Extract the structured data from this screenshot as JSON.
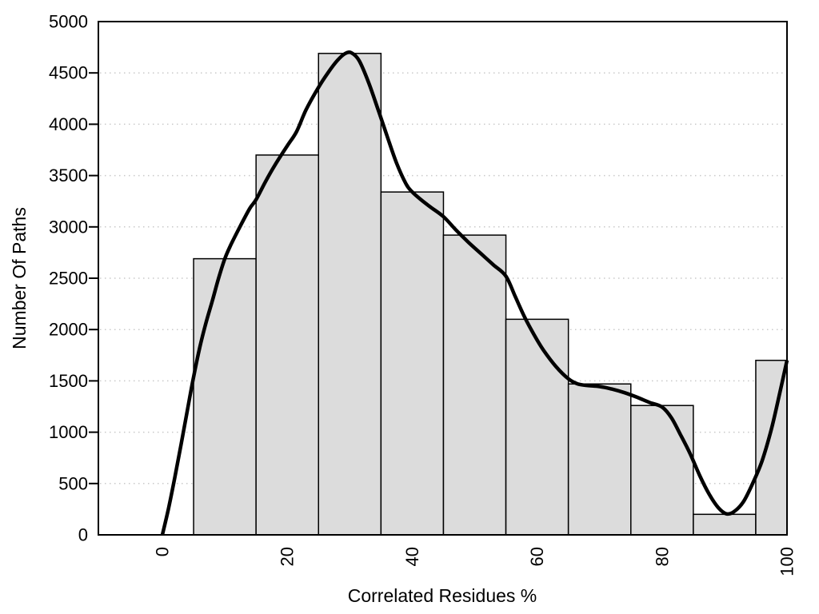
{
  "chart_data": {
    "type": "bar",
    "subtype": "histogram-with-density-curve",
    "title": "",
    "xlabel": "Correlated Residues %",
    "ylabel": "Number Of Paths",
    "xlim": [
      -10.25,
      100
    ],
    "ylim": [
      0,
      5000
    ],
    "x_ticks": [
      0,
      20,
      40,
      60,
      80,
      100
    ],
    "y_ticks": [
      0,
      500,
      1000,
      1500,
      2000,
      2500,
      3000,
      3500,
      4000,
      4500,
      5000
    ],
    "gridline_values": [
      500,
      1000,
      1500,
      2000,
      2500,
      3000,
      3500,
      4000,
      4500
    ],
    "grid_style": "dotted-horizontal-only",
    "legend": "none",
    "bars": {
      "bin_start": 5,
      "bin_width": 10,
      "bin_edges": [
        5,
        15,
        25,
        35,
        45,
        55,
        65,
        75,
        85,
        95,
        100
      ],
      "values": [
        2690,
        3700,
        4690,
        3340,
        2920,
        2100,
        1470,
        1260,
        200,
        1700
      ],
      "note": "last bin clipped at x=100 (right frame)"
    },
    "curve_points": [
      [
        0,
        0
      ],
      [
        1,
        260
      ],
      [
        2,
        560
      ],
      [
        3,
        880
      ],
      [
        4,
        1210
      ],
      [
        5,
        1540
      ],
      [
        6,
        1830
      ],
      [
        7,
        2070
      ],
      [
        8,
        2280
      ],
      [
        9,
        2500
      ],
      [
        10,
        2690
      ],
      [
        11,
        2830
      ],
      [
        12.5,
        3010
      ],
      [
        14,
        3180
      ],
      [
        15,
        3265
      ],
      [
        16.5,
        3440
      ],
      [
        18,
        3600
      ],
      [
        20,
        3790
      ],
      [
        21.5,
        3930
      ],
      [
        23,
        4140
      ],
      [
        25,
        4360
      ],
      [
        26.5,
        4500
      ],
      [
        28,
        4620
      ],
      [
        29.3,
        4690
      ],
      [
        30.3,
        4695
      ],
      [
        31.5,
        4620
      ],
      [
        33,
        4410
      ],
      [
        34.5,
        4150
      ],
      [
        36,
        3880
      ],
      [
        37.5,
        3620
      ],
      [
        39,
        3420
      ],
      [
        40,
        3340
      ],
      [
        41.5,
        3260
      ],
      [
        43,
        3190
      ],
      [
        45,
        3100
      ],
      [
        47,
        2970
      ],
      [
        49,
        2850
      ],
      [
        51,
        2740
      ],
      [
        53,
        2630
      ],
      [
        55,
        2520
      ],
      [
        56.5,
        2320
      ],
      [
        58,
        2120
      ],
      [
        59.5,
        1950
      ],
      [
        61,
        1800
      ],
      [
        63,
        1640
      ],
      [
        65,
        1520
      ],
      [
        66.5,
        1470
      ],
      [
        68,
        1455
      ],
      [
        70,
        1445
      ],
      [
        72,
        1420
      ],
      [
        74,
        1385
      ],
      [
        76,
        1340
      ],
      [
        78,
        1290
      ],
      [
        80,
        1245
      ],
      [
        81.5,
        1140
      ],
      [
        83,
        970
      ],
      [
        84.5,
        790
      ],
      [
        86,
        580
      ],
      [
        87.5,
        400
      ],
      [
        89,
        265
      ],
      [
        90.3,
        205
      ],
      [
        91.5,
        225
      ],
      [
        93,
        320
      ],
      [
        94.5,
        500
      ],
      [
        96,
        720
      ],
      [
        97.5,
        1030
      ],
      [
        98.8,
        1370
      ],
      [
        100,
        1700
      ]
    ],
    "colors": {
      "background": "#ffffff",
      "bar_fill": "#dcdcdc",
      "bar_stroke": "#000000",
      "curve": "#000000",
      "grid": "#c9c9c9",
      "frame": "#000000",
      "text": "#000000"
    }
  }
}
